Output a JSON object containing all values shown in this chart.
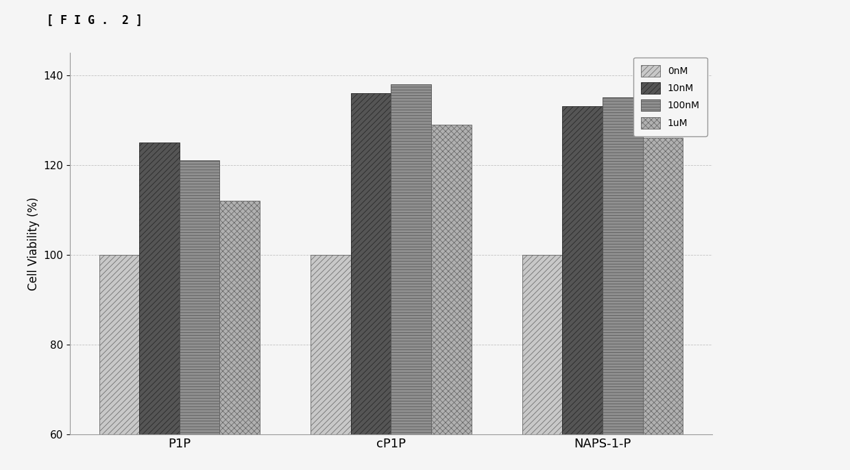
{
  "categories": [
    "P1P",
    "cP1P",
    "NAPS-1-P"
  ],
  "series": {
    "0nM": [
      100,
      100,
      100
    ],
    "10nM": [
      125,
      136,
      133
    ],
    "100nM": [
      121,
      138,
      135
    ],
    "1uM": [
      112,
      129,
      126
    ]
  },
  "series_order": [
    "0nM",
    "10nM",
    "100nM",
    "1uM"
  ],
  "ylabel": "Cell Viability (%)",
  "ylim": [
    60,
    145
  ],
  "yticks": [
    60,
    80,
    100,
    120,
    140
  ],
  "fig_label": "[ F I G .  2 ]",
  "bar_width": 0.19,
  "background_color": "#f5f5f5",
  "grid_color": "#aaaaaa",
  "axis_fontsize": 12,
  "tick_fontsize": 11,
  "bar_styles": [
    {
      "facecolor": "#c8c8c8",
      "edgecolor": "#606060",
      "hatch": "////"
    },
    {
      "facecolor": "#555555",
      "edgecolor": "#222222",
      "hatch": "////"
    },
    {
      "facecolor": "#909090",
      "edgecolor": "#505050",
      "hatch": "----"
    },
    {
      "facecolor": "#b0b0b0",
      "edgecolor": "#606060",
      "hatch": "xxxx"
    }
  ],
  "legend_labels": [
    "0nM",
    "10nM",
    "100nM",
    "1uM"
  ]
}
